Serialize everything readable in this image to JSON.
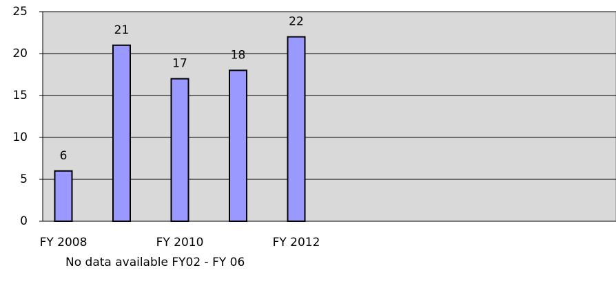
{
  "chart_data": {
    "type": "bar",
    "categories": [
      "FY 2008",
      null,
      "FY 2010",
      null,
      "FY 2012",
      null,
      null,
      null,
      null,
      null
    ],
    "values": [
      6,
      21,
      17,
      18,
      22,
      null,
      null,
      null,
      null,
      null
    ],
    "color": "#9999ff",
    "ylim": [
      0,
      25
    ],
    "yticks": [
      0,
      5,
      10,
      15,
      20,
      25
    ],
    "grid": true,
    "note": "No data available FY02 - FY 06"
  }
}
